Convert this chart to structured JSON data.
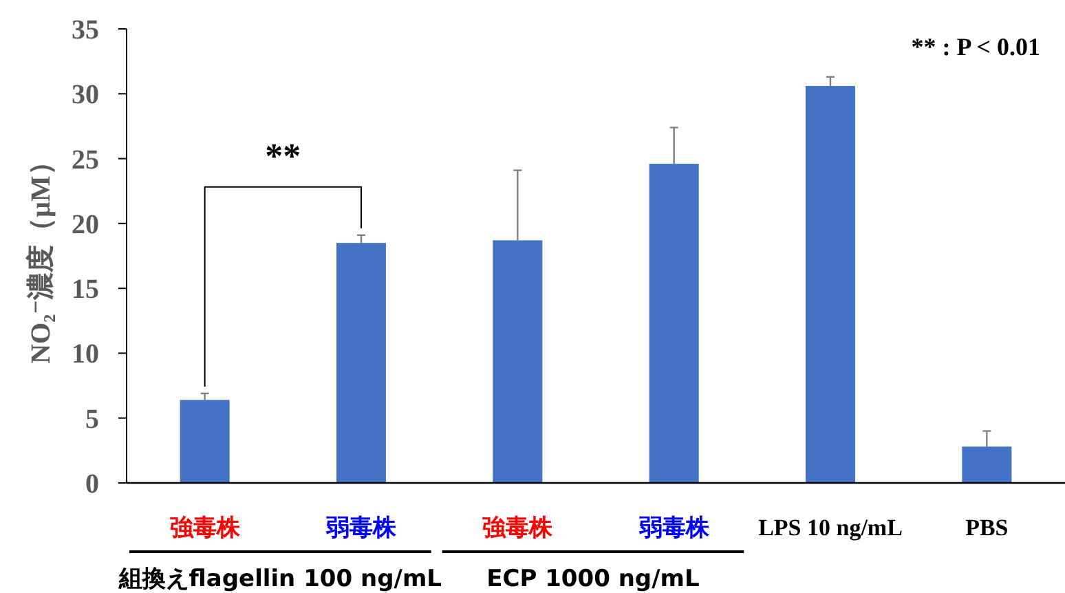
{
  "chart_data": {
    "type": "bar",
    "ylabel": "NO₂⁻濃度（μM）",
    "categories": [
      "強毒株",
      "弱毒株",
      "強毒株",
      "弱毒株",
      "LPS 10 ng/mL",
      "PBS"
    ],
    "values": [
      6.4,
      18.5,
      18.7,
      24.6,
      30.6,
      2.8
    ],
    "errors": [
      [
        6.4,
        6.9
      ],
      [
        18.5,
        19.1
      ],
      [
        18.7,
        24.1
      ],
      [
        24.6,
        27.4
      ],
      [
        30.6,
        31.3
      ],
      [
        2.8,
        4.0
      ]
    ],
    "color": "#4472c4",
    "ylim": [
      0,
      35
    ],
    "yticks": [
      0,
      5,
      10,
      15,
      20,
      25,
      30,
      35
    ],
    "grid": false,
    "annotations": [
      "** : P < 0.01",
      "**",
      "組換えflagellin 100 ng/mL",
      "ECP 1000 ng/mL"
    ]
  }
}
